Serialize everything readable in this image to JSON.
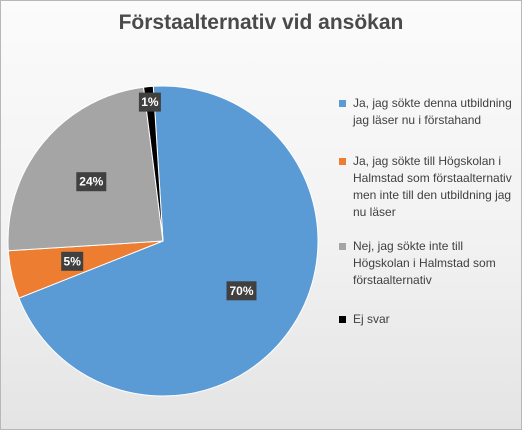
{
  "chart_data": {
    "type": "pie",
    "title": "Förstaalternativ vid ansökan",
    "legend_position": "right",
    "slices": [
      {
        "label": "Ja, jag sökte denna utbildning jag läser nu i förstahand",
        "value": 70,
        "value_label": "70%",
        "color": "#5b9bd5"
      },
      {
        "label": "Ja, jag sökte till Högskolan i Halmstad som förstaalternativ men inte till den utbildning jag nu läser",
        "value": 5,
        "value_label": "5%",
        "color": "#ed7d31"
      },
      {
        "label": "Nej, jag sökte inte till Högskolan i Halmstad som förstaalternativ",
        "value": 24,
        "value_label": "24%",
        "color": "#a5a5a5"
      },
      {
        "label": "Ej svar",
        "value": 1,
        "value_label": "1%",
        "color": "#000000"
      }
    ]
  }
}
